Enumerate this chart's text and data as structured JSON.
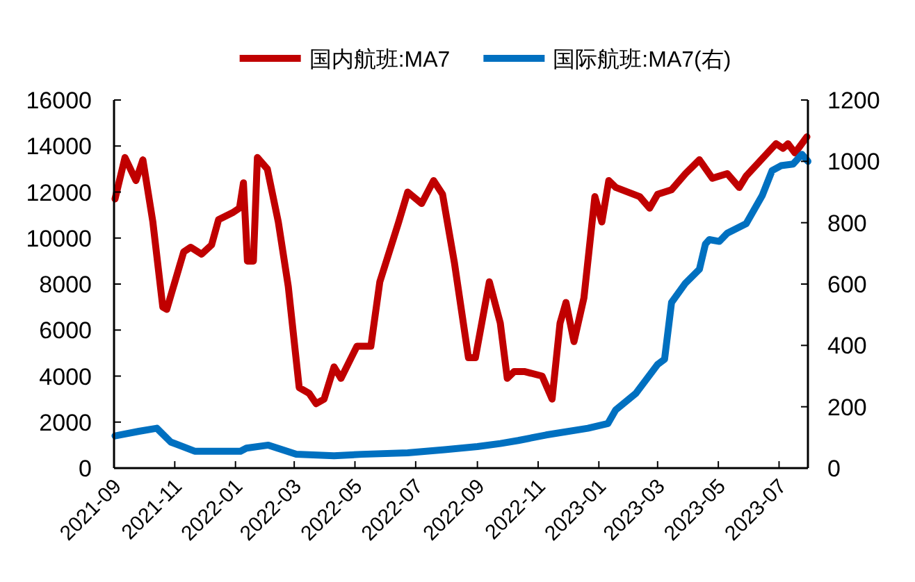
{
  "chart_data": {
    "type": "line",
    "xlim": [
      "2021-09-01",
      "2023-07-30"
    ],
    "xticks": [
      "2021-09",
      "2021-11",
      "2022-01",
      "2022-03",
      "2022-05",
      "2022-07",
      "2022-09",
      "2022-11",
      "2023-01",
      "2023-03",
      "2023-05",
      "2023-07"
    ],
    "ylim": [
      0,
      16000
    ],
    "yticks": [
      0,
      2000,
      4000,
      6000,
      8000,
      10000,
      12000,
      14000,
      16000
    ],
    "y2lim": [
      0,
      1200
    ],
    "y2ticks": [
      0,
      200,
      400,
      600,
      800,
      1000,
      1200
    ],
    "legend": "top",
    "grid": false,
    "marker": "none",
    "line_style": "solid",
    "series": [
      {
        "name": "国内航班:MA7",
        "color": "#c00000",
        "x": [
          "2021-09-02",
          "2021-09-12",
          "2021-09-23",
          "2021-09-30",
          "2021-10-10",
          "2021-10-20",
          "2021-10-24",
          "2021-11-10",
          "2021-11-17",
          "2021-11-28",
          "2021-12-08",
          "2021-12-15",
          "2021-12-29",
          "2022-01-05",
          "2022-01-09",
          "2022-01-13",
          "2022-01-19",
          "2022-01-23",
          "2022-02-02",
          "2022-02-13",
          "2022-02-23",
          "2022-03-06",
          "2022-03-16",
          "2022-03-23",
          "2022-03-31",
          "2022-04-10",
          "2022-04-17",
          "2022-05-03",
          "2022-05-17",
          "2022-05-26",
          "2022-06-14",
          "2022-06-23",
          "2022-07-07",
          "2022-07-19",
          "2022-07-28",
          "2022-08-09",
          "2022-08-23",
          "2022-08-30",
          "2022-09-13",
          "2022-09-24",
          "2022-10-01",
          "2022-10-08",
          "2022-10-18",
          "2022-11-05",
          "2022-11-15",
          "2022-11-23",
          "2022-11-29",
          "2022-12-07",
          "2022-12-17",
          "2022-12-28",
          "2023-01-04",
          "2023-01-11",
          "2023-01-18",
          "2023-02-11",
          "2023-02-21",
          "2023-03-01",
          "2023-03-15",
          "2023-03-29",
          "2023-04-12",
          "2023-04-25",
          "2023-05-10",
          "2023-05-22",
          "2023-05-29",
          "2023-06-28",
          "2023-07-05",
          "2023-07-10",
          "2023-07-17",
          "2023-07-29"
        ],
        "values": [
          11700,
          13500,
          12500,
          13400,
          10700,
          7000,
          6900,
          9400,
          9600,
          9300,
          9700,
          10800,
          11100,
          11300,
          12400,
          9000,
          9000,
          13500,
          13000,
          10700,
          7900,
          3500,
          3250,
          2800,
          3000,
          4400,
          3900,
          5300,
          5300,
          8100,
          10700,
          12000,
          11500,
          12500,
          11900,
          8900,
          4800,
          4800,
          8100,
          6300,
          3900,
          4200,
          4200,
          4000,
          3000,
          6300,
          7200,
          5500,
          7400,
          11800,
          10700,
          12500,
          12200,
          11800,
          11300,
          11900,
          12100,
          12800,
          13400,
          12600,
          12800,
          12200,
          12700,
          14100,
          13900,
          14100,
          13700,
          14400
        ]
      },
      {
        "name": "国际航班:MA7(右)",
        "color": "#0070c0",
        "axis": "y2",
        "x": [
          "2021-09-02",
          "2021-09-26",
          "2021-10-14",
          "2021-10-28",
          "2021-11-21",
          "2022-01-06",
          "2022-01-12",
          "2022-02-03",
          "2022-03-03",
          "2022-04-10",
          "2022-05-08",
          "2022-06-23",
          "2022-07-30",
          "2022-09-01",
          "2022-09-24",
          "2022-10-12",
          "2022-11-09",
          "2022-12-21",
          "2023-01-10",
          "2023-01-18",
          "2023-02-07",
          "2023-03-01",
          "2023-03-08",
          "2023-03-15",
          "2023-03-29",
          "2023-04-12",
          "2023-04-18",
          "2023-04-22",
          "2023-05-02",
          "2023-05-10",
          "2023-05-29",
          "2023-06-14",
          "2023-06-24",
          "2023-07-03",
          "2023-07-15",
          "2023-07-24",
          "2023-07-30"
        ],
        "values": [
          105,
          120,
          130,
          85,
          55,
          55,
          65,
          75,
          45,
          40,
          45,
          50,
          60,
          70,
          80,
          90,
          108,
          130,
          145,
          190,
          243,
          338,
          355,
          540,
          603,
          648,
          730,
          745,
          739,
          766,
          797,
          888,
          970,
          986,
          991,
          1023,
          1000
        ]
      }
    ]
  }
}
